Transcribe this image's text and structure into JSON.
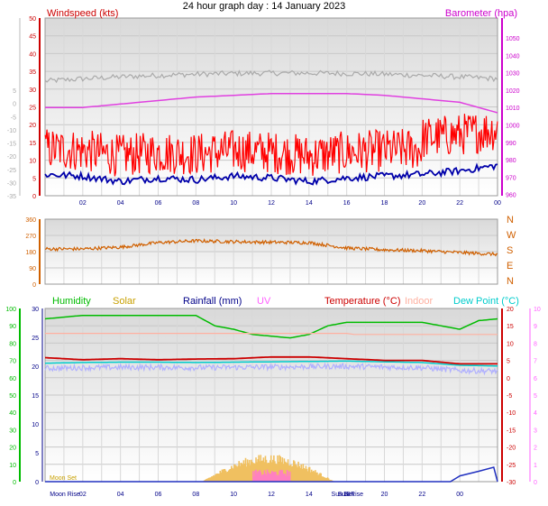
{
  "title": "24 hour graph day : 14 January 2023",
  "chart_data": [
    {
      "panel": "wind-pressure",
      "type": "line",
      "left_axis_label": "Windspeed (kts)",
      "right_axis_label": "Barometer (hpa)",
      "left_ticks": [
        "50",
        "45",
        "40",
        "35",
        "30",
        "25",
        "20",
        "15",
        "10",
        "5",
        "0"
      ],
      "left_ticks_alt": [
        "5",
        "0",
        "-5",
        "-10",
        "-15",
        "-20",
        "-25",
        "-30",
        "-35"
      ],
      "right_ticks": [
        "1050",
        "1040",
        "1030",
        "1020",
        "1010",
        "1000",
        "990",
        "980",
        "970",
        "960"
      ],
      "x_ticks": [
        "02",
        "04",
        "06",
        "08",
        "10",
        "12",
        "14",
        "16",
        "18",
        "20",
        "22",
        "00"
      ],
      "ylim_left": [
        0,
        50
      ],
      "ylim_right": [
        955,
        1050
      ],
      "grid": true,
      "colors": {
        "gust": "#ff0000",
        "wind": "#0000aa",
        "barometer": "#e040e0",
        "temp_gray": "#aaaaaa"
      },
      "series": [
        {
          "name": "Windspeed (kts)",
          "x": [
            0,
            2,
            4,
            6,
            8,
            10,
            12,
            14,
            16,
            18,
            20,
            22,
            24
          ],
          "values": [
            5,
            4.5,
            3,
            4,
            3.5,
            4.5,
            4,
            3,
            4,
            4.5,
            5,
            6,
            7.5
          ]
        },
        {
          "name": "Barometer (hpa)",
          "x": [
            0,
            2,
            4,
            6,
            8,
            10,
            12,
            14,
            16,
            18,
            20,
            22,
            24
          ],
          "values": [
            1000,
            1000,
            1002,
            1004,
            1006,
            1007,
            1008,
            1008,
            1008,
            1007,
            1005,
            1003,
            997
          ]
        }
      ]
    },
    {
      "panel": "wind-direction",
      "type": "line",
      "left_ticks": [
        "360",
        "270",
        "180",
        "90",
        "0"
      ],
      "right_labels": [
        "N",
        "W",
        "S",
        "E",
        "N"
      ],
      "ylim": [
        0,
        360
      ],
      "color": "#d06000",
      "x": [
        0,
        2,
        4,
        6,
        8,
        10,
        12,
        14,
        16,
        18,
        20,
        22,
        24
      ],
      "values": [
        195,
        195,
        205,
        230,
        240,
        235,
        232,
        230,
        200,
        190,
        185,
        175,
        165
      ]
    },
    {
      "panel": "humidity-temp-solar",
      "type": "line",
      "legend": [
        {
          "label": "Humidity",
          "color": "#00bb00"
        },
        {
          "label": "Solar",
          "color": "#c8a000"
        },
        {
          "label": "Rainfall (mm)",
          "color": "#000088"
        },
        {
          "label": "UV",
          "color": "#ff60ff"
        },
        {
          "label": "Temperature (°C)",
          "color": "#cc0000"
        },
        {
          "label": "Indoor",
          "color": "#ffb0a0"
        },
        {
          "label": "Dew Point (°C)",
          "color": "#00cccc"
        }
      ],
      "humidity_ticks": [
        "100",
        "90",
        "80",
        "70",
        "60",
        "50",
        "40",
        "30",
        "20",
        "10",
        "0"
      ],
      "rain_ticks": [
        "30",
        "25",
        "20",
        "15",
        "10",
        "5",
        "0"
      ],
      "temp_ticks": [
        "20",
        "15",
        "10",
        "5",
        "0",
        "-5",
        "-10",
        "-15",
        "-20",
        "-25",
        "-30"
      ],
      "uv_ticks": [
        "10",
        "9",
        "8",
        "7",
        "6",
        "5",
        "4",
        "3",
        "2",
        "1",
        "0"
      ],
      "x_labels": [
        "Moon Rise",
        "02",
        "04",
        "06",
        "08",
        "10",
        "12",
        "14",
        "Sun Set",
        "18",
        "20",
        "22",
        "00"
      ],
      "moon_set_label": "Moon Set",
      "sun_rise_label": "Sun Rise",
      "ylim_humidity": [
        0,
        100
      ],
      "ylim_temp": [
        -30,
        20
      ],
      "series": [
        {
          "name": "Humidity",
          "x": [
            0,
            2,
            4,
            6,
            8,
            9,
            10,
            11,
            12,
            13,
            14,
            15,
            16,
            18,
            20,
            22,
            23,
            24
          ],
          "values": [
            94,
            96,
            96,
            96,
            96,
            90,
            88,
            85,
            84,
            83,
            85,
            90,
            92,
            92,
            92,
            88,
            93,
            94
          ]
        },
        {
          "name": "Temperature (°C)",
          "x": [
            0,
            2,
            4,
            6,
            8,
            10,
            12,
            14,
            16,
            18,
            20,
            22,
            24
          ],
          "values": [
            5.8,
            5.2,
            5.5,
            5.2,
            5.4,
            5.5,
            6,
            6,
            5.5,
            5,
            5,
            4,
            4
          ]
        },
        {
          "name": "Dew Point (°C)",
          "x": [
            0,
            2,
            4,
            6,
            8,
            10,
            12,
            14,
            16,
            18,
            20,
            22,
            24
          ],
          "values": [
            4.2,
            4.4,
            4.5,
            4.5,
            4.4,
            4.5,
            4.6,
            4.7,
            4.8,
            4.6,
            4.4,
            3.6,
            3.4
          ]
        },
        {
          "name": "Indoor",
          "x": [
            0,
            4,
            8,
            12,
            16,
            20,
            24
          ],
          "values": [
            13,
            13,
            13,
            13,
            13,
            13,
            13
          ]
        },
        {
          "name": "Rainfall (mm)",
          "x": [
            0,
            21.5,
            22,
            23,
            23.8,
            24
          ],
          "values": [
            0,
            0,
            1,
            1.8,
            2.5,
            0
          ]
        }
      ]
    }
  ]
}
